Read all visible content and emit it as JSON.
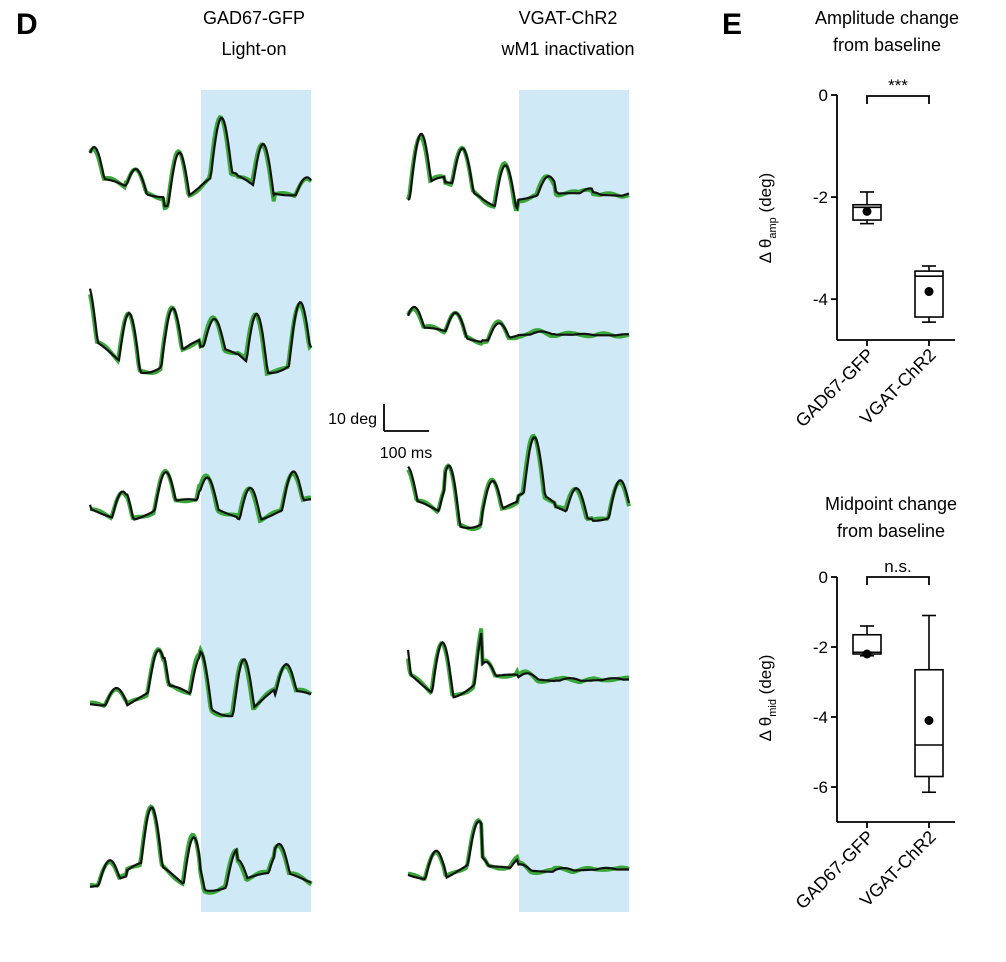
{
  "panel_d": {
    "letter": "D",
    "left_header": [
      "GAD67-GFP",
      "Light-on"
    ],
    "right_header": [
      "VGAT-ChR2",
      "wM1 inactivation"
    ],
    "scale_bar": {
      "vertical_label": "10 deg",
      "horizontal_label": "100 ms"
    }
  },
  "panel_e": {
    "letter": "E"
  },
  "colors": {
    "shade": "#cfeaf6",
    "trace_baseline": "#3aa63a",
    "trace_light": "#111111"
  },
  "chart_data": [
    {
      "type": "box",
      "title": [
        "Amplitude change",
        "from baseline"
      ],
      "ylabel": "Δ θ",
      "ylabel_sub": "amp",
      "ylabel_unit": "(deg)",
      "ylim": [
        -4.8,
        0
      ],
      "yticks": [
        0,
        -2,
        -4
      ],
      "categories": [
        "GAD67-GFP",
        "VGAT-ChR2"
      ],
      "boxes": [
        {
          "min": -2.52,
          "q1": -2.45,
          "median": -2.2,
          "q3": -2.15,
          "max": -1.9,
          "mean": -2.28
        },
        {
          "min": -4.45,
          "q1": -4.35,
          "median": -3.55,
          "q3": -3.45,
          "max": -3.35,
          "mean": -3.85
        }
      ],
      "significance": "***"
    },
    {
      "type": "box",
      "title": [
        "Midpoint change",
        "from baseline"
      ],
      "ylabel": "Δ θ",
      "ylabel_sub": "mid",
      "ylabel_unit": "(deg)",
      "ylim": [
        -7,
        0
      ],
      "yticks": [
        0,
        -2,
        -4,
        -6
      ],
      "categories": [
        "GAD67-GFP",
        "VGAT-ChR2"
      ],
      "boxes": [
        {
          "min": -2.25,
          "q1": -2.2,
          "median": -2.15,
          "q3": -1.65,
          "max": -1.4,
          "mean": -2.2
        },
        {
          "min": -6.15,
          "q1": -5.7,
          "median": -4.8,
          "q3": -2.65,
          "max": -1.1,
          "mean": -4.1
        }
      ],
      "significance": "n.s."
    }
  ]
}
